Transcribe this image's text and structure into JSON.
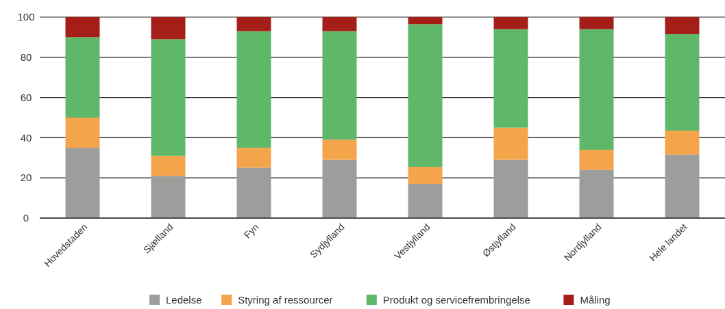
{
  "chart_data": {
    "type": "bar",
    "stacked": true,
    "categories": [
      "Hovedstaden",
      "Sjælland",
      "Fyn",
      "Sydjylland",
      "Vestjylland",
      "Østjylland",
      "Nordjylland",
      "Hele landet"
    ],
    "series": [
      {
        "name": "Ledelse",
        "color": "#9d9d9c",
        "values": [
          35,
          21,
          25,
          29,
          17,
          29,
          24,
          31.5
        ]
      },
      {
        "name": "Styring af ressourcer",
        "color": "#f4a54b",
        "values": [
          15,
          10,
          10,
          10,
          8.5,
          16,
          10,
          12
        ]
      },
      {
        "name": "Produkt og servicefrembringelse",
        "color": "#5fb76a",
        "values": [
          40,
          58,
          58,
          54,
          71,
          49,
          60,
          48
        ]
      },
      {
        "name": "Måling",
        "color": "#a51f18",
        "values": [
          10,
          11,
          7,
          7,
          3.5,
          6,
          6,
          8.5
        ]
      }
    ],
    "ylim": [
      0,
      100
    ],
    "yticks": [
      0,
      20,
      40,
      60,
      80,
      100
    ],
    "grid": "y",
    "legend": "bottom"
  }
}
